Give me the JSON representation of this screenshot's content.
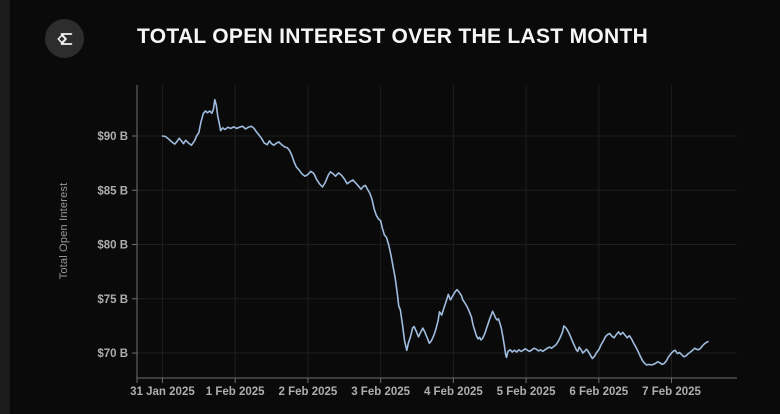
{
  "header": {
    "title": "TOTAL OPEN INTEREST OVER THE LAST MONTH",
    "logo_icon": "sigma-diamond-icon"
  },
  "colors": {
    "background": "#0a0a0a",
    "edge_strip": "#1b1b1b",
    "title": "#f6f6f6",
    "logo_bg": "#2d2d2d",
    "logo_glyph": "#f2f2f2",
    "line": "#9fbcdf",
    "grid": "#1e1e1e",
    "axis": "#707070",
    "tick_label": "#aeaeae",
    "axis_title": "#989898"
  },
  "chart_data": {
    "type": "line",
    "title": "TOTAL OPEN INTEREST OVER THE LAST MONTH",
    "xlabel": "",
    "ylabel": "Total Open Interest",
    "grid": true,
    "legend": "none",
    "xlim": [
      -0.35,
      7.9
    ],
    "ylim": [
      67.7,
      94.7
    ],
    "x_unit": "days since 31 Jan 2025 00:00",
    "y_unit": "billions USD",
    "x_ticks": [
      {
        "t": 0,
        "label": "31 Jan 2025"
      },
      {
        "t": 1,
        "label": "1 Feb 2025"
      },
      {
        "t": 2,
        "label": "2 Feb 2025"
      },
      {
        "t": 3,
        "label": "3 Feb 2025"
      },
      {
        "t": 4,
        "label": "4 Feb 2025"
      },
      {
        "t": 5,
        "label": "5 Feb 2025"
      },
      {
        "t": 6,
        "label": "6 Feb 2025"
      },
      {
        "t": 7,
        "label": "7 Feb 2025"
      }
    ],
    "y_ticks": [
      {
        "v": 90,
        "label": "$90 B"
      },
      {
        "v": 85,
        "label": "$85 B"
      },
      {
        "v": 80,
        "label": "$80 B"
      },
      {
        "v": 75,
        "label": "$75 B"
      },
      {
        "v": 70,
        "label": "$70 B"
      }
    ],
    "series": [
      {
        "name": "Total Open Interest",
        "color": "#9fbcdf",
        "points": [
          [
            0,
            90
          ],
          [
            0.04,
            89.95
          ],
          [
            0.08,
            89.75
          ],
          [
            0.13,
            89.45
          ],
          [
            0.17,
            89.25
          ],
          [
            0.2,
            89.5
          ],
          [
            0.23,
            89.8
          ],
          [
            0.26,
            89.55
          ],
          [
            0.29,
            89.3
          ],
          [
            0.32,
            89.6
          ],
          [
            0.36,
            89.35
          ],
          [
            0.4,
            89.15
          ],
          [
            0.44,
            89.55
          ],
          [
            0.47,
            90
          ],
          [
            0.5,
            90.3
          ],
          [
            0.53,
            91.3
          ],
          [
            0.56,
            92.05
          ],
          [
            0.59,
            92.3
          ],
          [
            0.62,
            92.15
          ],
          [
            0.65,
            92.3
          ],
          [
            0.68,
            92.1
          ],
          [
            0.7,
            92.45
          ],
          [
            0.72,
            93.35
          ],
          [
            0.74,
            92.85
          ],
          [
            0.76,
            91.85
          ],
          [
            0.78,
            91.2
          ],
          [
            0.8,
            90.5
          ],
          [
            0.83,
            90.75
          ],
          [
            0.86,
            90.6
          ],
          [
            0.9,
            90.8
          ],
          [
            0.94,
            90.7
          ],
          [
            0.98,
            90.85
          ],
          [
            1.02,
            90.7
          ],
          [
            1.06,
            90.8
          ],
          [
            1.1,
            90.9
          ],
          [
            1.14,
            90.65
          ],
          [
            1.18,
            90.8
          ],
          [
            1.22,
            90.9
          ],
          [
            1.26,
            90.7
          ],
          [
            1.29,
            90.4
          ],
          [
            1.32,
            90.15
          ],
          [
            1.36,
            89.8
          ],
          [
            1.4,
            89.35
          ],
          [
            1.44,
            89.2
          ],
          [
            1.47,
            89.55
          ],
          [
            1.5,
            89.3
          ],
          [
            1.53,
            89.15
          ],
          [
            1.57,
            89.35
          ],
          [
            1.6,
            89.45
          ],
          [
            1.64,
            89.2
          ],
          [
            1.68,
            89
          ],
          [
            1.72,
            88.9
          ],
          [
            1.75,
            88.65
          ],
          [
            1.78,
            88.2
          ],
          [
            1.81,
            87.6
          ],
          [
            1.84,
            87.15
          ],
          [
            1.88,
            86.85
          ],
          [
            1.92,
            86.5
          ],
          [
            1.96,
            86.3
          ],
          [
            2,
            86.45
          ],
          [
            2.04,
            86.75
          ],
          [
            2.08,
            86.55
          ],
          [
            2.12,
            86
          ],
          [
            2.16,
            85.6
          ],
          [
            2.2,
            85.3
          ],
          [
            2.24,
            85.75
          ],
          [
            2.28,
            86.4
          ],
          [
            2.31,
            86.7
          ],
          [
            2.35,
            86.5
          ],
          [
            2.38,
            86.3
          ],
          [
            2.42,
            86.6
          ],
          [
            2.46,
            86.4
          ],
          [
            2.5,
            86.05
          ],
          [
            2.54,
            85.6
          ],
          [
            2.58,
            85.8
          ],
          [
            2.62,
            85.95
          ],
          [
            2.66,
            85.65
          ],
          [
            2.7,
            85.35
          ],
          [
            2.73,
            85.1
          ],
          [
            2.76,
            85.35
          ],
          [
            2.79,
            85.45
          ],
          [
            2.82,
            85.1
          ],
          [
            2.85,
            84.75
          ],
          [
            2.88,
            84.2
          ],
          [
            2.91,
            83.3
          ],
          [
            2.94,
            82.7
          ],
          [
            2.97,
            82.35
          ],
          [
            3,
            82.2
          ],
          [
            3.02,
            81.6
          ],
          [
            3.05,
            80.9
          ],
          [
            3.08,
            80.65
          ],
          [
            3.11,
            80
          ],
          [
            3.14,
            79.1
          ],
          [
            3.17,
            78
          ],
          [
            3.2,
            76.9
          ],
          [
            3.23,
            75.4
          ],
          [
            3.25,
            74.3
          ],
          [
            3.27,
            74
          ],
          [
            3.3,
            72.6
          ],
          [
            3.33,
            71.1
          ],
          [
            3.36,
            70.25
          ],
          [
            3.38,
            70.9
          ],
          [
            3.41,
            71.5
          ],
          [
            3.44,
            72.3
          ],
          [
            3.46,
            72.45
          ],
          [
            3.49,
            72
          ],
          [
            3.52,
            71.5
          ],
          [
            3.55,
            71.9
          ],
          [
            3.58,
            72.3
          ],
          [
            3.61,
            71.9
          ],
          [
            3.64,
            71.4
          ],
          [
            3.67,
            70.9
          ],
          [
            3.7,
            71.15
          ],
          [
            3.73,
            71.6
          ],
          [
            3.76,
            72.2
          ],
          [
            3.79,
            73
          ],
          [
            3.81,
            73.8
          ],
          [
            3.84,
            73.5
          ],
          [
            3.87,
            74.15
          ],
          [
            3.9,
            74.75
          ],
          [
            3.93,
            75.4
          ],
          [
            3.96,
            74.9
          ],
          [
            3.99,
            75.25
          ],
          [
            4.02,
            75.6
          ],
          [
            4.05,
            75.85
          ],
          [
            4.08,
            75.6
          ],
          [
            4.11,
            75.3
          ],
          [
            4.13,
            74.9
          ],
          [
            4.16,
            74.6
          ],
          [
            4.19,
            74.25
          ],
          [
            4.22,
            73.8
          ],
          [
            4.25,
            73.3
          ],
          [
            4.27,
            72.6
          ],
          [
            4.3,
            71.95
          ],
          [
            4.32,
            71.55
          ],
          [
            4.34,
            71.3
          ],
          [
            4.36,
            71.45
          ],
          [
            4.38,
            71.2
          ],
          [
            4.4,
            71.35
          ],
          [
            4.42,
            71.6
          ],
          [
            4.44,
            71.95
          ],
          [
            4.46,
            72.35
          ],
          [
            4.48,
            72.75
          ],
          [
            4.5,
            73.15
          ],
          [
            4.52,
            73.5
          ],
          [
            4.54,
            73.85
          ],
          [
            4.56,
            73.55
          ],
          [
            4.58,
            73.25
          ],
          [
            4.6,
            73.05
          ],
          [
            4.62,
            73.15
          ],
          [
            4.64,
            72.75
          ],
          [
            4.66,
            72.25
          ],
          [
            4.68,
            71.55
          ],
          [
            4.7,
            70.7
          ],
          [
            4.72,
            69.85
          ],
          [
            4.73,
            69.6
          ],
          [
            4.75,
            70.15
          ],
          [
            4.78,
            70.3
          ],
          [
            4.81,
            70.1
          ],
          [
            4.84,
            70.25
          ],
          [
            4.87,
            70.1
          ],
          [
            4.9,
            70.3
          ],
          [
            4.93,
            70.15
          ],
          [
            4.96,
            70.25
          ],
          [
            4.99,
            70.4
          ],
          [
            5.02,
            70.25
          ],
          [
            5.05,
            70.15
          ],
          [
            5.08,
            70.3
          ],
          [
            5.11,
            70.45
          ],
          [
            5.14,
            70.35
          ],
          [
            5.17,
            70.2
          ],
          [
            5.2,
            70.3
          ],
          [
            5.23,
            70.15
          ],
          [
            5.26,
            70.3
          ],
          [
            5.29,
            70.45
          ],
          [
            5.32,
            70.55
          ],
          [
            5.35,
            70.45
          ],
          [
            5.38,
            70.6
          ],
          [
            5.41,
            70.75
          ],
          [
            5.44,
            71.05
          ],
          [
            5.47,
            71.45
          ],
          [
            5.5,
            71.95
          ],
          [
            5.52,
            72.5
          ],
          [
            5.55,
            72.3
          ],
          [
            5.57,
            72.1
          ],
          [
            5.6,
            71.7
          ],
          [
            5.63,
            71.2
          ],
          [
            5.66,
            70.75
          ],
          [
            5.69,
            70.3
          ],
          [
            5.71,
            70.15
          ],
          [
            5.73,
            70.55
          ],
          [
            5.76,
            70.25
          ],
          [
            5.78,
            70
          ],
          [
            5.81,
            70.2
          ],
          [
            5.83,
            70.35
          ],
          [
            5.86,
            70.1
          ],
          [
            5.88,
            69.85
          ],
          [
            5.91,
            69.5
          ],
          [
            5.94,
            69.7
          ],
          [
            5.97,
            70.05
          ],
          [
            6,
            70.3
          ],
          [
            6.03,
            70.75
          ],
          [
            6.06,
            71.1
          ],
          [
            6.09,
            71.5
          ],
          [
            6.12,
            71.7
          ],
          [
            6.15,
            71.8
          ],
          [
            6.18,
            71.55
          ],
          [
            6.21,
            71.4
          ],
          [
            6.24,
            71.7
          ],
          [
            6.27,
            71.95
          ],
          [
            6.3,
            71.7
          ],
          [
            6.33,
            71.9
          ],
          [
            6.36,
            71.65
          ],
          [
            6.39,
            71.4
          ],
          [
            6.42,
            71.6
          ],
          [
            6.45,
            71.3
          ],
          [
            6.48,
            70.9
          ],
          [
            6.51,
            70.55
          ],
          [
            6.54,
            70.15
          ],
          [
            6.57,
            69.7
          ],
          [
            6.6,
            69.3
          ],
          [
            6.63,
            69.05
          ],
          [
            6.66,
            68.9
          ],
          [
            6.69,
            68.95
          ],
          [
            6.72,
            68.9
          ],
          [
            6.75,
            68.95
          ],
          [
            6.78,
            69.05
          ],
          [
            6.81,
            69.2
          ],
          [
            6.84,
            69.1
          ],
          [
            6.87,
            68.95
          ],
          [
            6.9,
            69.05
          ],
          [
            6.93,
            69.3
          ],
          [
            6.96,
            69.65
          ],
          [
            7,
            70
          ],
          [
            7.03,
            70.2
          ],
          [
            7.05,
            70.25
          ],
          [
            7.08,
            69.95
          ],
          [
            7.11,
            70.05
          ],
          [
            7.14,
            69.85
          ],
          [
            7.17,
            69.65
          ],
          [
            7.2,
            69.75
          ],
          [
            7.23,
            69.95
          ],
          [
            7.26,
            70.1
          ],
          [
            7.29,
            70.25
          ],
          [
            7.32,
            70.45
          ],
          [
            7.34,
            70.35
          ],
          [
            7.37,
            70.3
          ],
          [
            7.4,
            70.45
          ],
          [
            7.43,
            70.7
          ],
          [
            7.46,
            70.9
          ],
          [
            7.5,
            71.05
          ]
        ]
      }
    ]
  }
}
